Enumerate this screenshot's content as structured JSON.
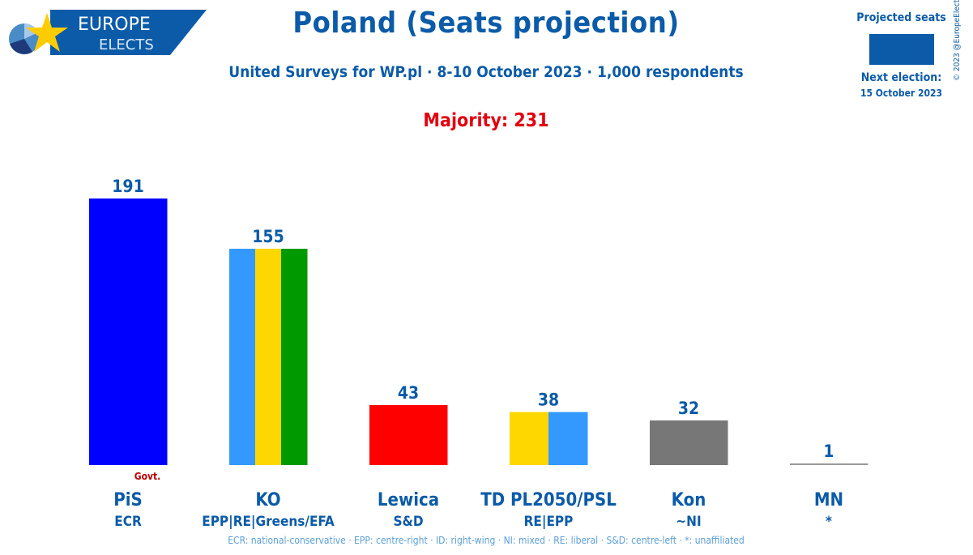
{
  "header": {
    "logo_line1": "EUROPE",
    "logo_line2": "ELECTS",
    "title": "Poland (Seats projection)",
    "subtitle": "United Surveys for WP.pl · 8-10 October 2023 · 1,000 respondents",
    "majority": "Majority: 231"
  },
  "legend": {
    "label": "Projected seats",
    "swatch_color": "#0b5ba8",
    "next_election_label": "Next election:",
    "next_election_date": "15 October 2023"
  },
  "copyright": "© 2023 @EuropeElects",
  "footnote": "ECR: national-conservative · EPP: centre-right · ID: right-wing · NI: mixed · RE: liberal · S&D: centre-left · *: unaffiliated",
  "colors": {
    "text_blue": "#0b5ba8",
    "majority_red": "#e3000f",
    "govt_red": "#c00000"
  },
  "chart_data": {
    "type": "bar",
    "title": "Poland (Seats projection)",
    "xlabel": "",
    "ylabel": "Projected seats",
    "ylim": [
      0,
      191
    ],
    "grid": false,
    "legend": "top-right",
    "categories": [
      "PiS",
      "KO",
      "Lewica",
      "TD PL2050/PSL",
      "Kon",
      "MN"
    ],
    "groups": [
      "ECR",
      "EPP|RE|Greens/EFA",
      "S&D",
      "RE|EPP",
      "~NI",
      "*"
    ],
    "values": [
      191,
      155,
      43,
      38,
      32,
      1
    ],
    "bar_colors": [
      [
        "#0000ff"
      ],
      [
        "#3399ff",
        "#ffd700",
        "#009900"
      ],
      [
        "#ff0000"
      ],
      [
        "#ffd700",
        "#3399ff"
      ],
      [
        "#777777"
      ],
      [
        "#999999"
      ]
    ],
    "annotations": [
      {
        "category": "PiS",
        "text": "Govt."
      }
    ]
  }
}
